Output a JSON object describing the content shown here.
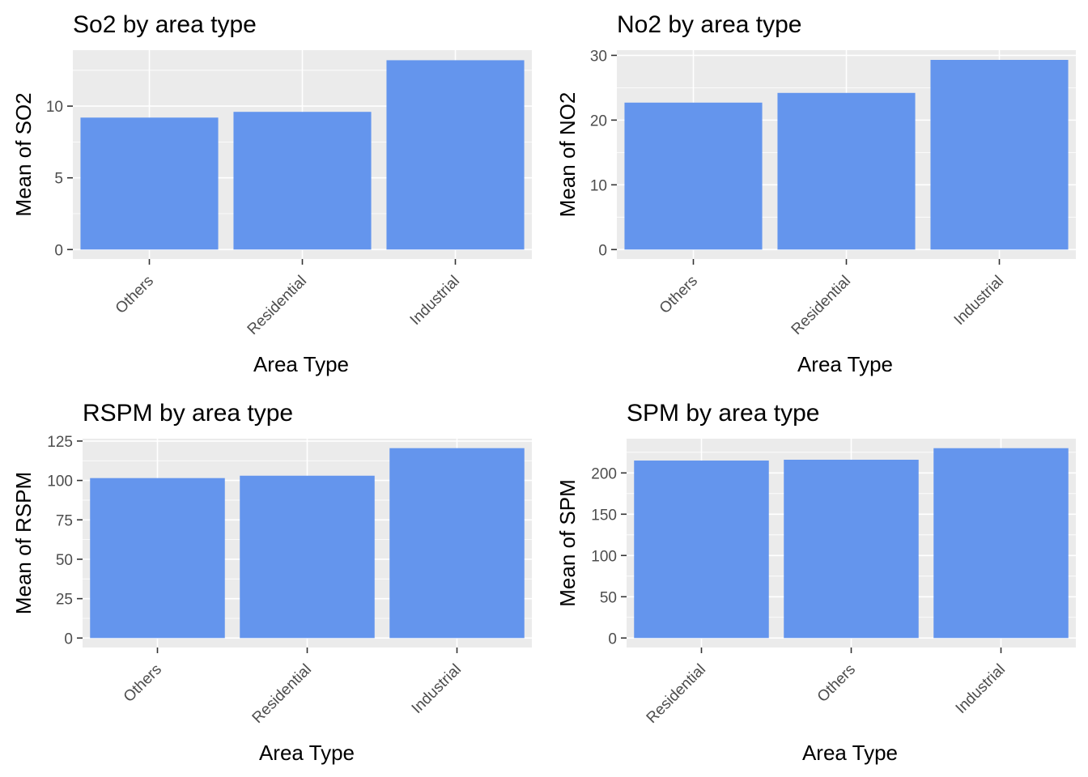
{
  "colors": {
    "bar": "#6495ED",
    "panel": "#EBEBEB",
    "grid": "#FFFFFF",
    "tick_text": "#4D4D4D"
  },
  "chart_data": [
    {
      "type": "bar",
      "title": "So2 by area type",
      "xlabel": "Area Type",
      "ylabel": "Mean of SO2",
      "categories": [
        "Others",
        "Residential",
        "Industrial"
      ],
      "values": [
        9.2,
        9.6,
        13.2
      ],
      "ylim": [
        -0.66,
        13.9
      ],
      "yticks": [
        0,
        5,
        10
      ],
      "grid": true
    },
    {
      "type": "bar",
      "title": "No2 by area type",
      "xlabel": "Area Type",
      "ylabel": "Mean of NO2",
      "categories": [
        "Others",
        "Residential",
        "Industrial"
      ],
      "values": [
        22.7,
        24.2,
        29.3
      ],
      "ylim": [
        -1.46,
        30.8
      ],
      "yticks": [
        0,
        10,
        20,
        30
      ],
      "grid": true
    },
    {
      "type": "bar",
      "title": "RSPM by area type",
      "xlabel": "Area Type",
      "ylabel": "Mean of RSPM",
      "categories": [
        "Others",
        "Residential",
        "Industrial"
      ],
      "values": [
        101.5,
        103.0,
        120.5
      ],
      "ylim": [
        -6.0,
        126.5
      ],
      "yticks": [
        0,
        25,
        50,
        75,
        100,
        125
      ],
      "grid": true
    },
    {
      "type": "bar",
      "title": "SPM by area type",
      "xlabel": "Area Type",
      "ylabel": "Mean of SPM",
      "categories": [
        "Residential",
        "Others",
        "Industrial"
      ],
      "values": [
        215,
        216,
        230
      ],
      "ylim": [
        -11.5,
        241.5
      ],
      "yticks": [
        0,
        50,
        100,
        150,
        200
      ],
      "grid": true
    }
  ]
}
